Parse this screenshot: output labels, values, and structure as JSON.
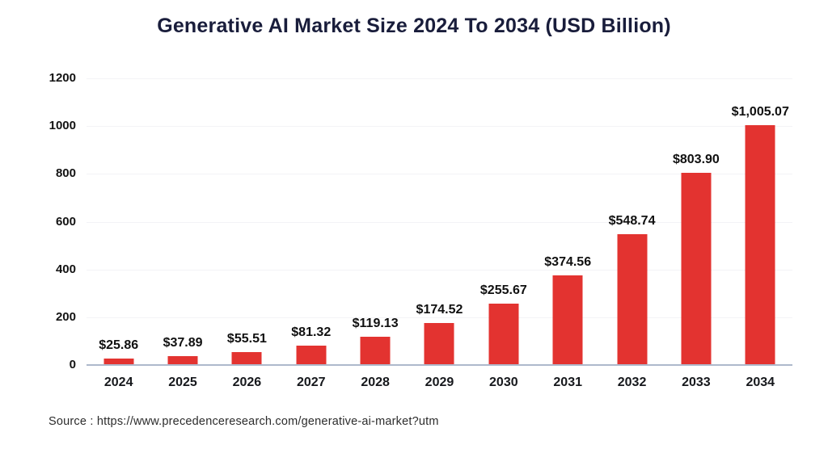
{
  "chart_data": {
    "type": "bar",
    "title": "Generative AI Market Size 2024 To 2034 (USD Billion)",
    "categories": [
      "2024",
      "2025",
      "2026",
      "2027",
      "2028",
      "2029",
      "2030",
      "2031",
      "2032",
      "2033",
      "2034"
    ],
    "values": [
      25.86,
      37.89,
      55.51,
      81.32,
      119.13,
      174.52,
      255.67,
      374.56,
      548.74,
      803.9,
      1005.07
    ],
    "value_labels": [
      "$25.86",
      "$37.89",
      "$55.51",
      "$81.32",
      "$119.13",
      "$174.52",
      "$255.67",
      "$374.56",
      "$548.74",
      "$803.90",
      "$1,005.07"
    ],
    "xlabel": "",
    "ylabel": "",
    "ylim": [
      0,
      1200
    ],
    "yticks": [
      0,
      200,
      400,
      600,
      800,
      1000,
      1200
    ],
    "grid": true,
    "legend_position": "none",
    "bar_color": "#e33330"
  },
  "source": {
    "text": "Source : https://www.precedenceresearch.com/generative-ai-market?utm"
  },
  "colors": {
    "background": "#ffffff",
    "title": "#191d3b",
    "tick_label": "#131313",
    "value_label": "#101010",
    "gridline": "#f3f3f6",
    "baseline": "#aeb9cc",
    "bar": "#e33330"
  }
}
